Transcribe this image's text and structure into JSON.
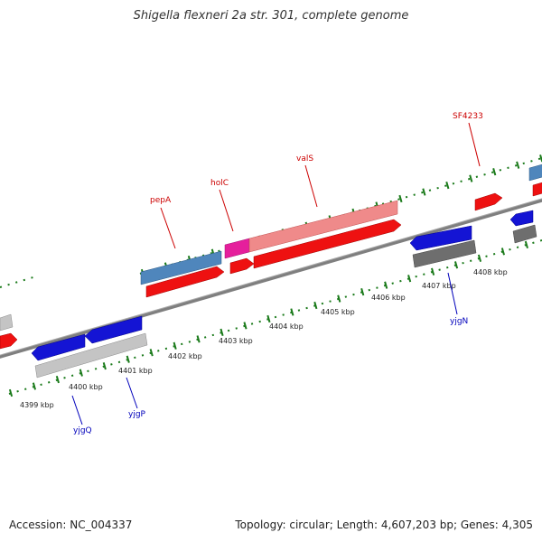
{
  "title": "Shigella flexneri 2a str. 301, complete genome",
  "footer": {
    "accession": "Accession: NC_004337",
    "summary": "Topology: circular; Length: 4,607,203 bp; Genes: 4,305"
  },
  "colors": {
    "axis": "#7f7f7f",
    "tick": "#1a7a1a",
    "red": "#ee1111",
    "pink": "#ef8a8a",
    "magenta": "#e51f9c",
    "steel": "#4f86bc",
    "blue": "#1414d4",
    "lightgray": "#c4c4c4",
    "darkgray": "#6e6e6e",
    "label_red": "#cc0000",
    "label_blue": "#0000bb"
  },
  "scale_labels": [
    "4399 kbp",
    "4400 kbp",
    "4401 kbp",
    "4402 kbp",
    "4403 kbp",
    "4404 kbp",
    "4405 kbp",
    "4406 kbp",
    "4407 kbp",
    "4408 kbp"
  ],
  "gene_labels": [
    {
      "text": "pepA",
      "color": "label_red"
    },
    {
      "text": "holC",
      "color": "label_red"
    },
    {
      "text": "valS",
      "color": "label_red"
    },
    {
      "text": "SF4233",
      "color": "label_red"
    },
    {
      "text": "yjgN",
      "color": "label_blue"
    },
    {
      "text": "yjgP",
      "color": "label_blue"
    },
    {
      "text": "yjgQ",
      "color": "label_blue"
    }
  ]
}
